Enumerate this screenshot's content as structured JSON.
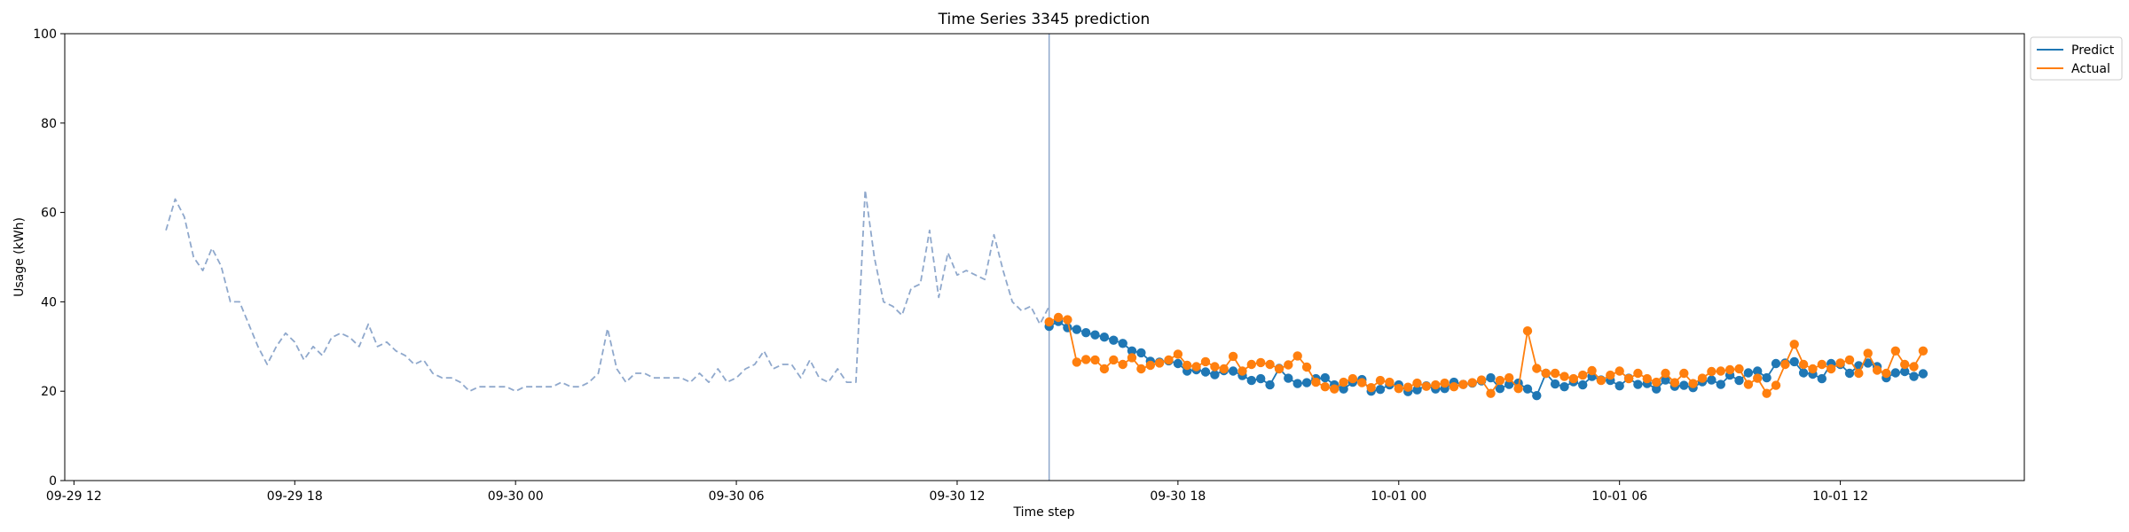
{
  "chart_data": {
    "type": "line",
    "title": "Time Series 3345 prediction",
    "xlabel": "Time step",
    "ylabel": "Usage (kWh)",
    "ylim": [
      0,
      100
    ],
    "yticks": [
      0,
      20,
      40,
      60,
      80,
      100
    ],
    "xlim": [
      "09-29 11:45",
      "10-01 17:00"
    ],
    "xticks": [
      "09-29 12",
      "09-29 18",
      "09-30 00",
      "09-30 06",
      "09-30 12",
      "09-30 18",
      "10-01 00",
      "10-01 06",
      "10-01 12"
    ],
    "xtick_values": [
      "09-29 12:00",
      "09-29 18:00",
      "09-30 00:00",
      "09-30 06:00",
      "09-30 12:00",
      "09-30 18:00",
      "10-01 00:00",
      "10-01 06:00",
      "10-01 12:00"
    ],
    "split_time": "09-30 14:30",
    "legend": {
      "position": "top-right",
      "entries": [
        "Predict",
        "Actual"
      ]
    },
    "series": [
      {
        "name": "",
        "style": "dashed",
        "color": "#8fa8cc",
        "x": [
          "09-29 14:30",
          "09-29 14:45",
          "09-29 15:00",
          "09-29 15:15",
          "09-29 15:30",
          "09-29 15:45",
          "09-29 16:00",
          "09-29 16:15",
          "09-29 16:30",
          "09-29 16:45",
          "09-29 17:00",
          "09-29 17:15",
          "09-29 17:30",
          "09-29 17:45",
          "09-29 18:00",
          "09-29 18:15",
          "09-29 18:30",
          "09-29 18:45",
          "09-29 19:00",
          "09-29 19:15",
          "09-29 19:30",
          "09-29 19:45",
          "09-29 20:00",
          "09-29 20:15",
          "09-29 20:30",
          "09-29 20:45",
          "09-29 21:00",
          "09-29 21:15",
          "09-29 21:30",
          "09-29 21:45",
          "09-29 22:00",
          "09-29 22:15",
          "09-29 22:30",
          "09-29 22:45",
          "09-29 23:00",
          "09-29 23:15",
          "09-29 23:30",
          "09-29 23:45",
          "09-30 00:00",
          "09-30 00:15",
          "09-30 00:30",
          "09-30 00:45",
          "09-30 01:00",
          "09-30 01:15",
          "09-30 01:30",
          "09-30 01:45",
          "09-30 02:00",
          "09-30 02:15",
          "09-30 02:30",
          "09-30 02:45",
          "09-30 03:00",
          "09-30 03:15",
          "09-30 03:30",
          "09-30 03:45",
          "09-30 04:00",
          "09-30 04:15",
          "09-30 04:30",
          "09-30 04:45",
          "09-30 05:00",
          "09-30 05:15",
          "09-30 05:30",
          "09-30 05:45",
          "09-30 06:00",
          "09-30 06:15",
          "09-30 06:30",
          "09-30 06:45",
          "09-30 07:00",
          "09-30 07:15",
          "09-30 07:30",
          "09-30 07:45",
          "09-30 08:00",
          "09-30 08:15",
          "09-30 08:30",
          "09-30 08:45",
          "09-30 09:00",
          "09-30 09:15",
          "09-30 09:30",
          "09-30 09:45",
          "09-30 10:00",
          "09-30 10:15",
          "09-30 10:30",
          "09-30 10:45",
          "09-30 11:00",
          "09-30 11:15",
          "09-30 11:30",
          "09-30 11:45",
          "09-30 12:00",
          "09-30 12:15",
          "09-30 12:30",
          "09-30 12:45",
          "09-30 13:00",
          "09-30 13:15",
          "09-30 13:30",
          "09-30 13:45",
          "09-30 14:00",
          "09-30 14:15",
          "09-30 14:30"
        ],
        "y": [
          56,
          63,
          59,
          50,
          47,
          52,
          48,
          40,
          40,
          35,
          30,
          26,
          30,
          33,
          31,
          27,
          30,
          28,
          32,
          33,
          32,
          30,
          35,
          30,
          31,
          29,
          28,
          26,
          27,
          24,
          23,
          23,
          22,
          20,
          21,
          21,
          21,
          21,
          20,
          21,
          21,
          21,
          21,
          22,
          21,
          21,
          22,
          24,
          34,
          25,
          22,
          24,
          24,
          23,
          23,
          23,
          23,
          22,
          24,
          22,
          25,
          22,
          23,
          25,
          26,
          29,
          25,
          26,
          26,
          23,
          27,
          23,
          22,
          25,
          22,
          22,
          65,
          50,
          40,
          39,
          37,
          43,
          44,
          56,
          41,
          51,
          46,
          47,
          46,
          45,
          55,
          47,
          40,
          38,
          39,
          35,
          39
        ]
      },
      {
        "name": "Predict",
        "color": "#1f77b4",
        "x": [
          "09-30 14:30",
          "09-30 14:45",
          "09-30 15:00",
          "09-30 15:15",
          "09-30 15:30",
          "09-30 15:45",
          "09-30 16:00",
          "09-30 16:15",
          "09-30 16:30",
          "09-30 16:45",
          "09-30 17:00",
          "09-30 17:15",
          "09-30 17:30",
          "09-30 17:45",
          "09-30 18:00",
          "09-30 18:15",
          "09-30 18:30",
          "09-30 18:45",
          "09-30 19:00",
          "09-30 19:15",
          "09-30 19:30",
          "09-30 19:45",
          "09-30 20:00",
          "09-30 20:15",
          "09-30 20:30",
          "09-30 20:45",
          "09-30 21:00",
          "09-30 21:15",
          "09-30 21:30",
          "09-30 21:45",
          "09-30 22:00",
          "09-30 22:15",
          "09-30 22:30",
          "09-30 22:45",
          "09-30 23:00",
          "09-30 23:15",
          "09-30 23:30",
          "09-30 23:45",
          "10-01 00:00",
          "10-01 00:15",
          "10-01 00:30",
          "10-01 00:45",
          "10-01 01:00",
          "10-01 01:15",
          "10-01 01:30",
          "10-01 01:45",
          "10-01 02:00",
          "10-01 02:15",
          "10-01 02:30",
          "10-01 02:45",
          "10-01 03:00",
          "10-01 03:15",
          "10-01 03:30",
          "10-01 03:45",
          "10-01 04:00",
          "10-01 04:15",
          "10-01 04:30",
          "10-01 04:45",
          "10-01 05:00",
          "10-01 05:15",
          "10-01 05:30",
          "10-01 05:45",
          "10-01 06:00",
          "10-01 06:15",
          "10-01 06:30",
          "10-01 06:45",
          "10-01 07:00",
          "10-01 07:15",
          "10-01 07:30",
          "10-01 07:45",
          "10-01 08:00",
          "10-01 08:15",
          "10-01 08:30",
          "10-01 08:45",
          "10-01 09:00",
          "10-01 09:15",
          "10-01 09:30",
          "10-01 09:45",
          "10-01 10:00",
          "10-01 10:15",
          "10-01 10:30",
          "10-01 10:45",
          "10-01 11:00",
          "10-01 11:15",
          "10-01 11:30",
          "10-01 11:45",
          "10-01 12:00",
          "10-01 12:15",
          "10-01 12:30",
          "10-01 12:45",
          "10-01 13:00",
          "10-01 13:15",
          "10-01 13:30",
          "10-01 13:45",
          "10-01 14:00",
          "10-01 14:15"
        ],
        "y": [
          34.5,
          35.6,
          34.2,
          33.8,
          33.1,
          32.6,
          32.1,
          31.4,
          30.7,
          29.0,
          28.6,
          26.7,
          26.5,
          26.8,
          26.2,
          24.5,
          24.8,
          24.3,
          23.7,
          24.6,
          24.5,
          23.5,
          22.4,
          22.8,
          21.4,
          25.1,
          22.9,
          21.7,
          21.9,
          22.8,
          23.0,
          21.4,
          20.5,
          22.0,
          22.6,
          20.0,
          20.4,
          21.4,
          21.4,
          19.9,
          20.3,
          21.2,
          20.5,
          20.6,
          22.0,
          21.5,
          21.8,
          22.3,
          23.0,
          20.6,
          21.5,
          21.8,
          20.5,
          19.0,
          24.0,
          21.6,
          21.0,
          22.1,
          21.4,
          23.3,
          22.5,
          22.4,
          21.2,
          22.9,
          21.5,
          21.7,
          20.5,
          22.5,
          21.1,
          21.3,
          20.8,
          22.1,
          22.5,
          21.5,
          23.6,
          22.4,
          24.1,
          24.5,
          23.0,
          26.2,
          26.3,
          26.6,
          24.1,
          23.8,
          22.8,
          26.2,
          26.0,
          24.0,
          25.7,
          26.3,
          25.5,
          23.0,
          24.1,
          24.4,
          23.3,
          23.9
        ]
      },
      {
        "name": "Actual",
        "color": "#ff7f0e",
        "x": [
          "09-30 14:30",
          "09-30 14:45",
          "09-30 15:00",
          "09-30 15:15",
          "09-30 15:30",
          "09-30 15:45",
          "09-30 16:00",
          "09-30 16:15",
          "09-30 16:30",
          "09-30 16:45",
          "09-30 17:00",
          "09-30 17:15",
          "09-30 17:30",
          "09-30 17:45",
          "09-30 18:00",
          "09-30 18:15",
          "09-30 18:30",
          "09-30 18:45",
          "09-30 19:00",
          "09-30 19:15",
          "09-30 19:30",
          "09-30 19:45",
          "09-30 20:00",
          "09-30 20:15",
          "09-30 20:30",
          "09-30 20:45",
          "09-30 21:00",
          "09-30 21:15",
          "09-30 21:30",
          "09-30 21:45",
          "09-30 22:00",
          "09-30 22:15",
          "09-30 22:30",
          "09-30 22:45",
          "09-30 23:00",
          "09-30 23:15",
          "09-30 23:30",
          "09-30 23:45",
          "10-01 00:00",
          "10-01 00:15",
          "10-01 00:30",
          "10-01 00:45",
          "10-01 01:00",
          "10-01 01:15",
          "10-01 01:30",
          "10-01 01:45",
          "10-01 02:00",
          "10-01 02:15",
          "10-01 02:30",
          "10-01 02:45",
          "10-01 03:00",
          "10-01 03:15",
          "10-01 03:30",
          "10-01 03:45",
          "10-01 04:00",
          "10-01 04:15",
          "10-01 04:30",
          "10-01 04:45",
          "10-01 05:00",
          "10-01 05:15",
          "10-01 05:30",
          "10-01 05:45",
          "10-01 06:00",
          "10-01 06:15",
          "10-01 06:30",
          "10-01 06:45",
          "10-01 07:00",
          "10-01 07:15",
          "10-01 07:30",
          "10-01 07:45",
          "10-01 08:00",
          "10-01 08:15",
          "10-01 08:30",
          "10-01 08:45",
          "10-01 09:00",
          "10-01 09:15",
          "10-01 09:30",
          "10-01 09:45",
          "10-01 10:00",
          "10-01 10:15",
          "10-01 10:30",
          "10-01 10:45",
          "10-01 11:00",
          "10-01 11:15",
          "10-01 11:30",
          "10-01 11:45",
          "10-01 12:00",
          "10-01 12:15",
          "10-01 12:30",
          "10-01 12:45",
          "10-01 13:00",
          "10-01 13:15",
          "10-01 13:30",
          "10-01 13:45",
          "10-01 14:00",
          "10-01 14:15"
        ],
        "y": [
          35.5,
          36.5,
          36.0,
          26.5,
          27.1,
          27.0,
          25.0,
          27.0,
          26.0,
          27.5,
          25.0,
          25.8,
          26.3,
          27.0,
          28.3,
          25.8,
          25.5,
          26.6,
          25.5,
          25.0,
          27.8,
          24.5,
          26.0,
          26.4,
          26.0,
          25.0,
          25.9,
          27.9,
          25.4,
          22.0,
          21.0,
          20.5,
          22.0,
          22.8,
          21.9,
          20.8,
          22.4,
          22.0,
          20.6,
          20.9,
          21.8,
          21.1,
          21.4,
          21.8,
          21.0,
          21.5,
          21.9,
          22.5,
          19.5,
          22.4,
          23.0,
          20.6,
          33.5,
          25.1,
          24.0,
          24.0,
          23.3,
          22.8,
          23.6,
          24.6,
          22.4,
          23.6,
          24.5,
          22.8,
          24.0,
          22.8,
          22.0,
          24.0,
          21.9,
          24.0,
          21.7,
          22.9,
          24.4,
          24.5,
          24.8,
          25.0,
          21.5,
          22.9,
          19.5,
          21.3,
          26.0,
          30.5,
          26.0,
          25.0,
          26.0,
          25.0,
          26.3,
          27.0,
          24.0,
          28.5,
          24.7,
          24.0,
          29.0,
          26.0,
          25.5,
          29.0
        ]
      }
    ]
  }
}
